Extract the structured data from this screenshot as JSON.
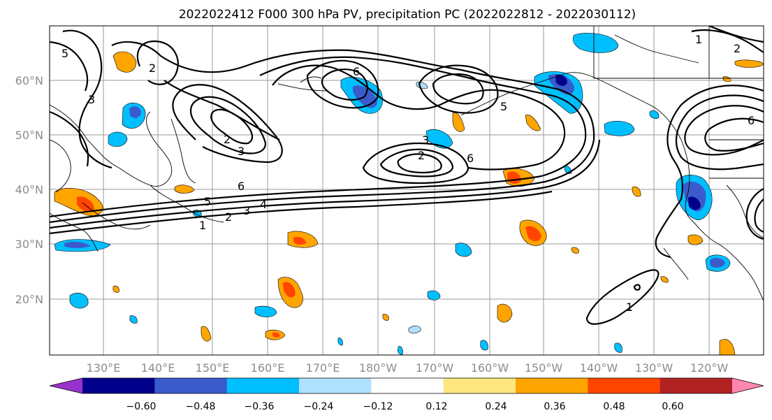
{
  "title": "2022022412 F000 300 hPa PV, precipitation PC (2022022812 - 2022030112)",
  "lon_labels": [
    "130°E",
    "140°E",
    "150°E",
    "160°E",
    "170°E",
    "180°W",
    "170°W",
    "160°W",
    "150°W",
    "140°W",
    "130°W",
    "120°W"
  ],
  "lat_labels": [
    "60°N",
    "50°N",
    "40°N",
    "30°N",
    "20°N"
  ],
  "colorbar": {
    "ticks": [
      "−0.60",
      "−0.48",
      "−0.36",
      "−0.24",
      "−0.12",
      "0.12",
      "0.24",
      "0.36",
      "0.48",
      "0.60"
    ],
    "colors": [
      "#9932cc",
      "#00008b",
      "#3a5bcc",
      "#00bfff",
      "#b0e0ff",
      "#ffffff",
      "#ffe680",
      "#ffa500",
      "#ff4500",
      "#b22222",
      "#ff88b0"
    ]
  },
  "contour_labels": {
    "l1": "1",
    "l2": "2",
    "l3": "3",
    "l4": "4",
    "l5": "5",
    "l6": "2",
    "l7": "3",
    "l8": "6",
    "l9": "6",
    "l10": "2",
    "l11": "3",
    "l12": "6",
    "l13": "5",
    "l14": "1",
    "l15": "2",
    "l16": "3",
    "l17": "6",
    "l18": "1",
    "l19": "2",
    "l20": "5"
  }
}
